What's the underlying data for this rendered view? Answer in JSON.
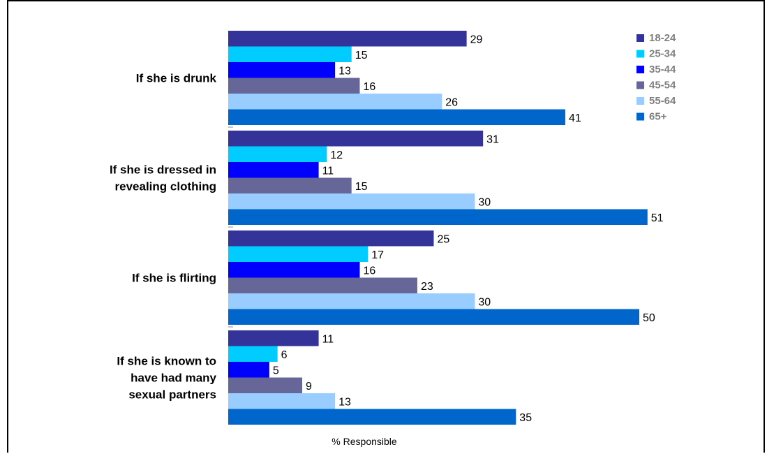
{
  "chart_data": {
    "type": "bar",
    "orientation": "horizontal",
    "categories": [
      [
        "If she is drunk"
      ],
      [
        "If she is dressed in",
        "revealing clothing"
      ],
      [
        "If she is flirting"
      ],
      [
        "If she is known to",
        "have had many",
        "sexual partners"
      ]
    ],
    "series": [
      {
        "name": "18-24",
        "color": "#333399",
        "values": [
          29,
          31,
          25,
          11
        ]
      },
      {
        "name": "25-34",
        "color": "#00CCFF",
        "values": [
          15,
          12,
          17,
          6
        ]
      },
      {
        "name": "35-44",
        "color": "#0000FF",
        "values": [
          13,
          11,
          16,
          5
        ]
      },
      {
        "name": "45-54",
        "color": "#666699",
        "values": [
          16,
          15,
          23,
          9
        ]
      },
      {
        "name": "55-64",
        "color": "#99CCFF",
        "values": [
          26,
          30,
          30,
          13
        ]
      },
      {
        "name": "65+",
        "color": "#0066CC",
        "values": [
          41,
          51,
          50,
          35
        ]
      }
    ],
    "xlabel": "% Responsible",
    "legend_position": "top-right",
    "grid": false
  }
}
